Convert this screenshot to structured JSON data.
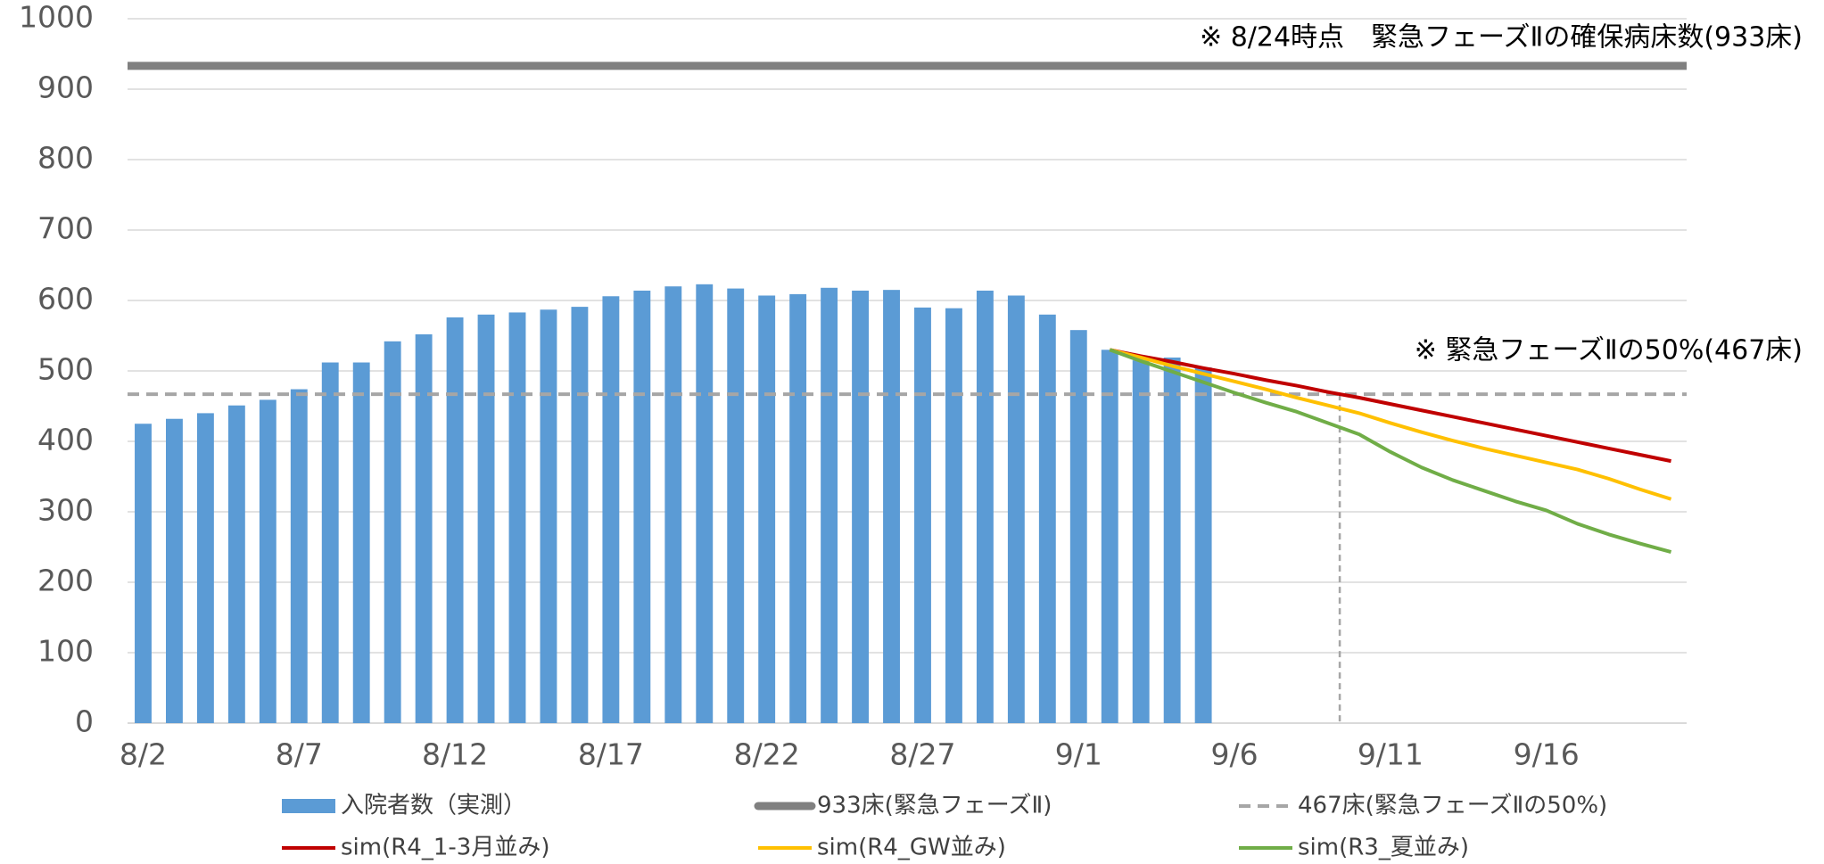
{
  "chart_data": {
    "type": "bar",
    "categories": [
      "8/2",
      null,
      null,
      null,
      null,
      "8/7",
      null,
      null,
      null,
      null,
      "8/12",
      null,
      null,
      null,
      null,
      "8/17",
      null,
      null,
      null,
      null,
      "8/22",
      null,
      null,
      null,
      null,
      "8/27",
      null,
      null,
      null,
      null,
      "9/1",
      null,
      null,
      null,
      null,
      "9/6",
      null,
      null,
      null,
      null,
      "9/11",
      null,
      null,
      null,
      null,
      "9/16",
      null,
      null,
      null,
      null
    ],
    "series": [
      {
        "name": "入院者数（実測）",
        "type": "bar",
        "color": "#5b9bd5",
        "values": [
          425,
          432,
          440,
          451,
          459,
          474,
          512,
          512,
          542,
          552,
          576,
          580,
          583,
          587,
          591,
          606,
          614,
          620,
          623,
          617,
          607,
          609,
          618,
          614,
          615,
          590,
          589,
          614,
          607,
          580,
          558,
          530,
          515,
          519,
          505,
          null,
          null,
          null,
          null,
          null,
          null,
          null,
          null,
          null,
          null,
          null,
          null,
          null,
          null,
          null
        ]
      },
      {
        "name": "sim(R4_1-3月並み)",
        "type": "line",
        "color": "#c00000",
        "values": [
          null,
          null,
          null,
          null,
          null,
          null,
          null,
          null,
          null,
          null,
          null,
          null,
          null,
          null,
          null,
          null,
          null,
          null,
          null,
          null,
          null,
          null,
          null,
          null,
          null,
          null,
          null,
          null,
          null,
          null,
          null,
          530,
          521,
          513,
          504,
          496,
          487,
          479,
          470,
          462,
          453,
          444,
          435,
          426,
          417,
          408,
          399,
          390,
          381,
          372
        ]
      },
      {
        "name": "sim(R4_GW並み)",
        "type": "line",
        "color": "#ffc000",
        "values": [
          null,
          null,
          null,
          null,
          null,
          null,
          null,
          null,
          null,
          null,
          null,
          null,
          null,
          null,
          null,
          null,
          null,
          null,
          null,
          null,
          null,
          null,
          null,
          null,
          null,
          null,
          null,
          null,
          null,
          null,
          null,
          530,
          519,
          507,
          496,
          485,
          474,
          462,
          451,
          440,
          426,
          413,
          401,
          390,
          380,
          370,
          360,
          347,
          332,
          318
        ]
      },
      {
        "name": "sim(R3_夏並み)",
        "type": "line",
        "color": "#70ad47",
        "values": [
          null,
          null,
          null,
          null,
          null,
          null,
          null,
          null,
          null,
          null,
          null,
          null,
          null,
          null,
          null,
          null,
          null,
          null,
          null,
          null,
          null,
          null,
          null,
          null,
          null,
          null,
          null,
          null,
          null,
          null,
          null,
          530,
          514,
          499,
          484,
          469,
          455,
          442,
          426,
          410,
          385,
          363,
          345,
          330,
          315,
          302,
          283,
          268,
          255,
          243
        ]
      }
    ],
    "reference_lines": [
      {
        "name": "933床(緊急フェーズⅡ)",
        "value": 933,
        "color": "#808080",
        "style": "solid"
      },
      {
        "name": "467床(緊急フェーズⅡの50%)",
        "value": 467,
        "color": "#a6a6a6",
        "style": "dashed"
      }
    ],
    "annotations": [
      "※ 8/24時点　緊急フェーズⅡの確保病床数(933床)",
      "※ 緊急フェーズⅡの50%(467床)"
    ],
    "ylim": [
      0,
      1000
    ],
    "yticks": [
      0,
      100,
      200,
      300,
      400,
      500,
      600,
      700,
      800,
      900,
      1000
    ],
    "grid": true
  }
}
